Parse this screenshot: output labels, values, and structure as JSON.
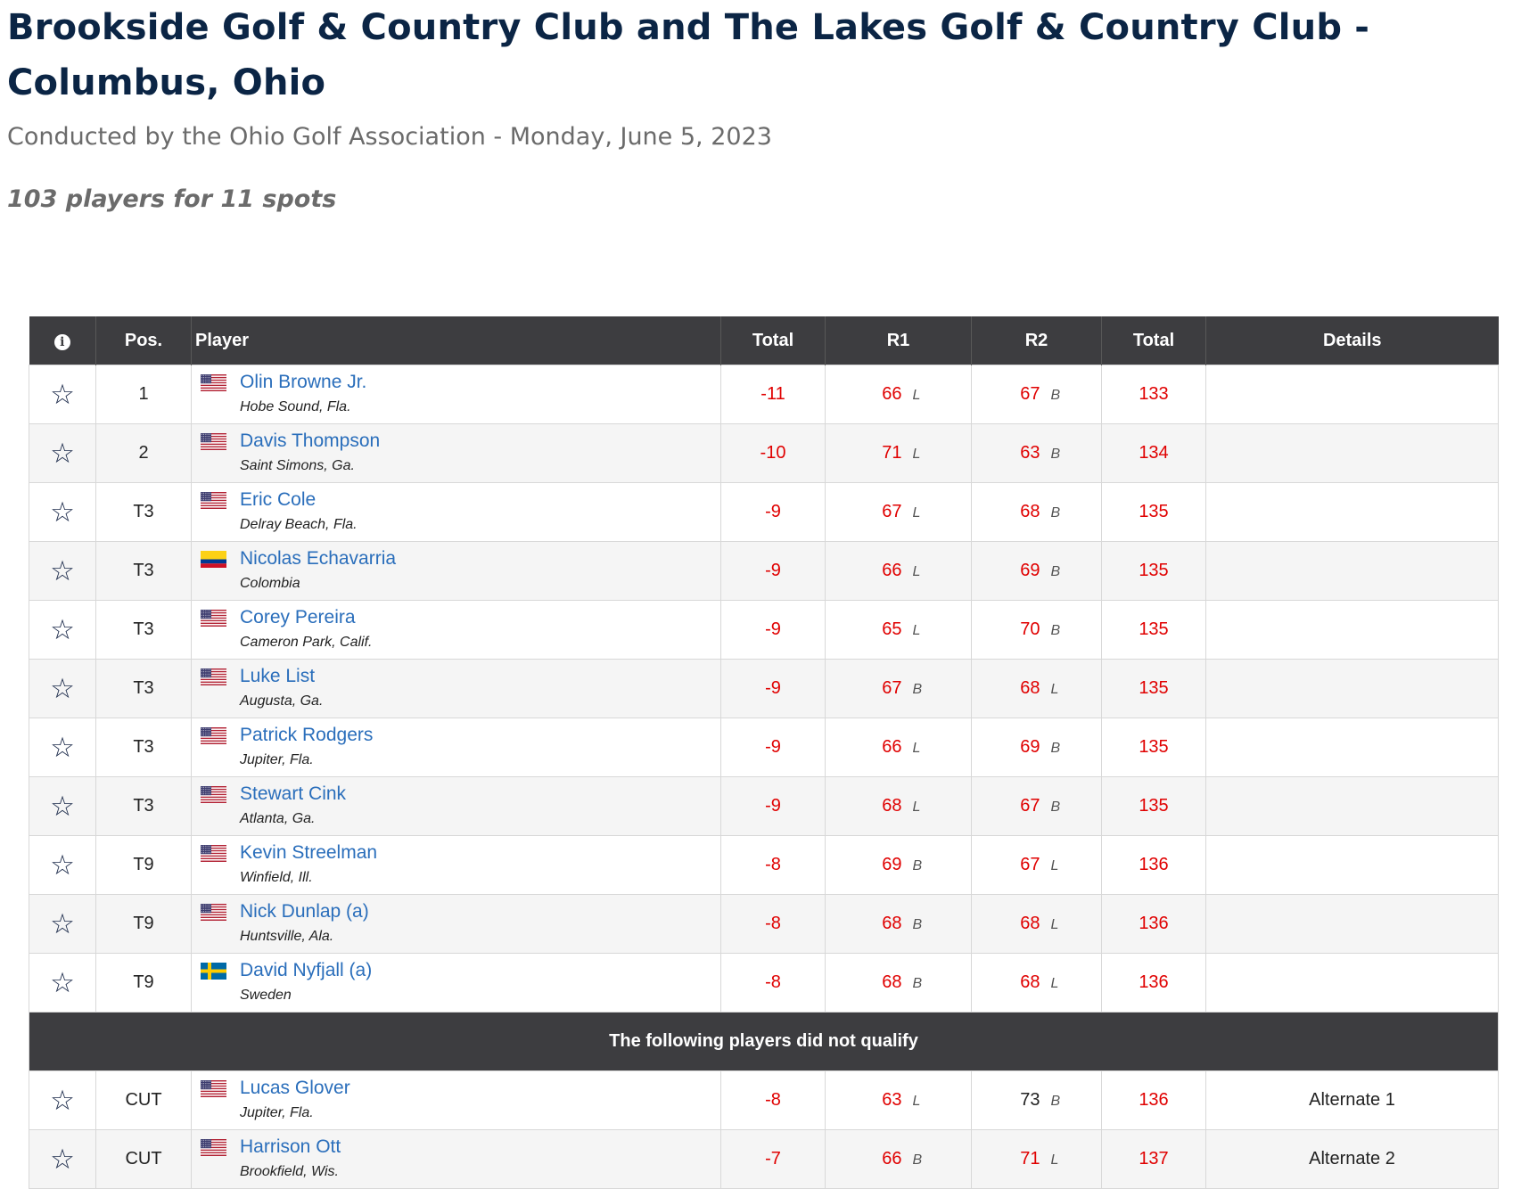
{
  "header": {
    "title": "Brookside Golf & Country Club and The Lakes Golf & Country Club - Columbus, Ohio",
    "subtitle": "Conducted by the Ohio Golf Association - Monday, June 5, 2023",
    "spots": "103 players for 11 spots"
  },
  "table": {
    "columns": {
      "info": "i",
      "pos": "Pos.",
      "player": "Player",
      "total_to_par": "Total",
      "r1": "R1",
      "r2": "R2",
      "total": "Total",
      "details": "Details"
    },
    "qualified": [
      {
        "pos": "1",
        "name": "Olin Browne Jr.",
        "location": "Hobe Sound, Fla.",
        "flag": "us-flag",
        "to_par": "-11",
        "r1": "66",
        "r1_course": "L",
        "r2": "67",
        "r2_course": "B",
        "total": "133",
        "details": ""
      },
      {
        "pos": "2",
        "name": "Davis Thompson",
        "location": "Saint Simons, Ga.",
        "flag": "us-flag",
        "to_par": "-10",
        "r1": "71",
        "r1_course": "L",
        "r2": "63",
        "r2_course": "B",
        "total": "134",
        "details": ""
      },
      {
        "pos": "T3",
        "name": "Eric Cole",
        "location": "Delray Beach, Fla.",
        "flag": "us-flag",
        "to_par": "-9",
        "r1": "67",
        "r1_course": "L",
        "r2": "68",
        "r2_course": "B",
        "total": "135",
        "details": ""
      },
      {
        "pos": "T3",
        "name": "Nicolas Echavarria",
        "location": "Colombia",
        "flag": "colombia-flag",
        "to_par": "-9",
        "r1": "66",
        "r1_course": "L",
        "r2": "69",
        "r2_course": "B",
        "total": "135",
        "details": ""
      },
      {
        "pos": "T3",
        "name": "Corey Pereira",
        "location": "Cameron Park, Calif.",
        "flag": "us-flag",
        "to_par": "-9",
        "r1": "65",
        "r1_course": "L",
        "r2": "70",
        "r2_course": "B",
        "total": "135",
        "details": ""
      },
      {
        "pos": "T3",
        "name": "Luke List",
        "location": "Augusta, Ga.",
        "flag": "us-flag",
        "to_par": "-9",
        "r1": "67",
        "r1_course": "B",
        "r2": "68",
        "r2_course": "L",
        "total": "135",
        "details": ""
      },
      {
        "pos": "T3",
        "name": "Patrick Rodgers",
        "location": "Jupiter, Fla.",
        "flag": "us-flag",
        "to_par": "-9",
        "r1": "66",
        "r1_course": "L",
        "r2": "69",
        "r2_course": "B",
        "total": "135",
        "details": ""
      },
      {
        "pos": "T3",
        "name": "Stewart Cink",
        "location": "Atlanta, Ga.",
        "flag": "us-flag",
        "to_par": "-9",
        "r1": "68",
        "r1_course": "L",
        "r2": "67",
        "r2_course": "B",
        "total": "135",
        "details": ""
      },
      {
        "pos": "T9",
        "name": "Kevin Streelman",
        "location": "Winfield, Ill.",
        "flag": "us-flag",
        "to_par": "-8",
        "r1": "69",
        "r1_course": "B",
        "r2": "67",
        "r2_course": "L",
        "total": "136",
        "details": ""
      },
      {
        "pos": "T9",
        "name": "Nick Dunlap (a)",
        "location": "Huntsville, Ala.",
        "flag": "us-flag",
        "to_par": "-8",
        "r1": "68",
        "r1_course": "B",
        "r2": "68",
        "r2_course": "L",
        "total": "136",
        "details": ""
      },
      {
        "pos": "T9",
        "name": "David Nyfjall (a)",
        "location": "Sweden",
        "flag": "sweden-flag",
        "to_par": "-8",
        "r1": "68",
        "r1_course": "B",
        "r2": "68",
        "r2_course": "L",
        "total": "136",
        "details": ""
      }
    ],
    "separator": "The following players did not qualify",
    "not_qualified": [
      {
        "pos": "CUT",
        "name": "Lucas Glover",
        "location": "Jupiter, Fla.",
        "flag": "us-flag",
        "to_par": "-8",
        "r1": "63",
        "r1_course": "L",
        "r2": "73",
        "r2_course": "B",
        "r2_color": "black",
        "total": "136",
        "details": "Alternate 1"
      },
      {
        "pos": "CUT",
        "name": "Harrison Ott",
        "location": "Brookfield, Wis.",
        "flag": "us-flag",
        "to_par": "-7",
        "r1": "66",
        "r1_course": "B",
        "r2": "71",
        "r2_course": "L",
        "total": "137",
        "details": "Alternate 2"
      }
    ]
  },
  "colors": {
    "title": "#0b2545",
    "header_bg": "#3d3d40",
    "link": "#2a6ebb",
    "score_red": "#e00000"
  },
  "icons": {
    "info": "info-circle-icon",
    "favorite": "star-outline-icon"
  }
}
